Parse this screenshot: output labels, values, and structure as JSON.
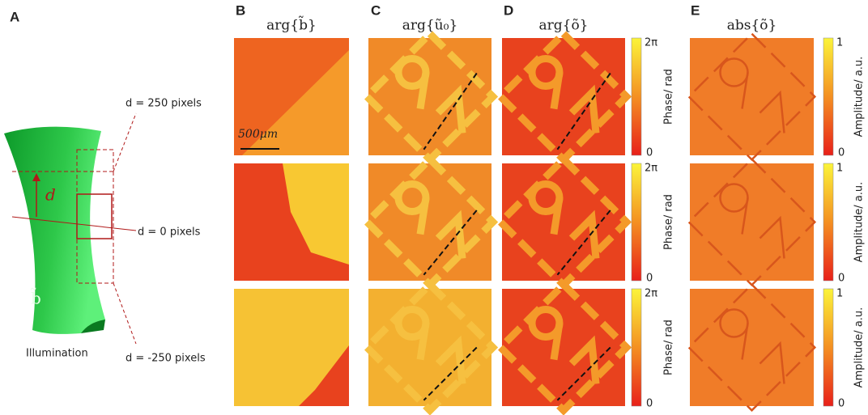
{
  "panel_labels": [
    "A",
    "B",
    "C",
    "D",
    "E"
  ],
  "column_titles": [
    "arg{b̃}",
    "arg{ũ₀}",
    "arg{õ}",
    "abs{õ}"
  ],
  "diagram": {
    "d_symbol": "d",
    "b_symbol": "b̃",
    "illumination": "Illumination",
    "offsets": [
      "d = 250 pixels",
      "d = 0 pixels",
      "d = -250 pixels"
    ]
  },
  "scale_bar": "500μm",
  "colorbars": {
    "phase": {
      "label": "Phase/ rad",
      "max": "2π",
      "min": "0"
    },
    "amplitude": {
      "label": "Amplitude/ a.u.",
      "max": "1",
      "min": "0"
    }
  }
}
